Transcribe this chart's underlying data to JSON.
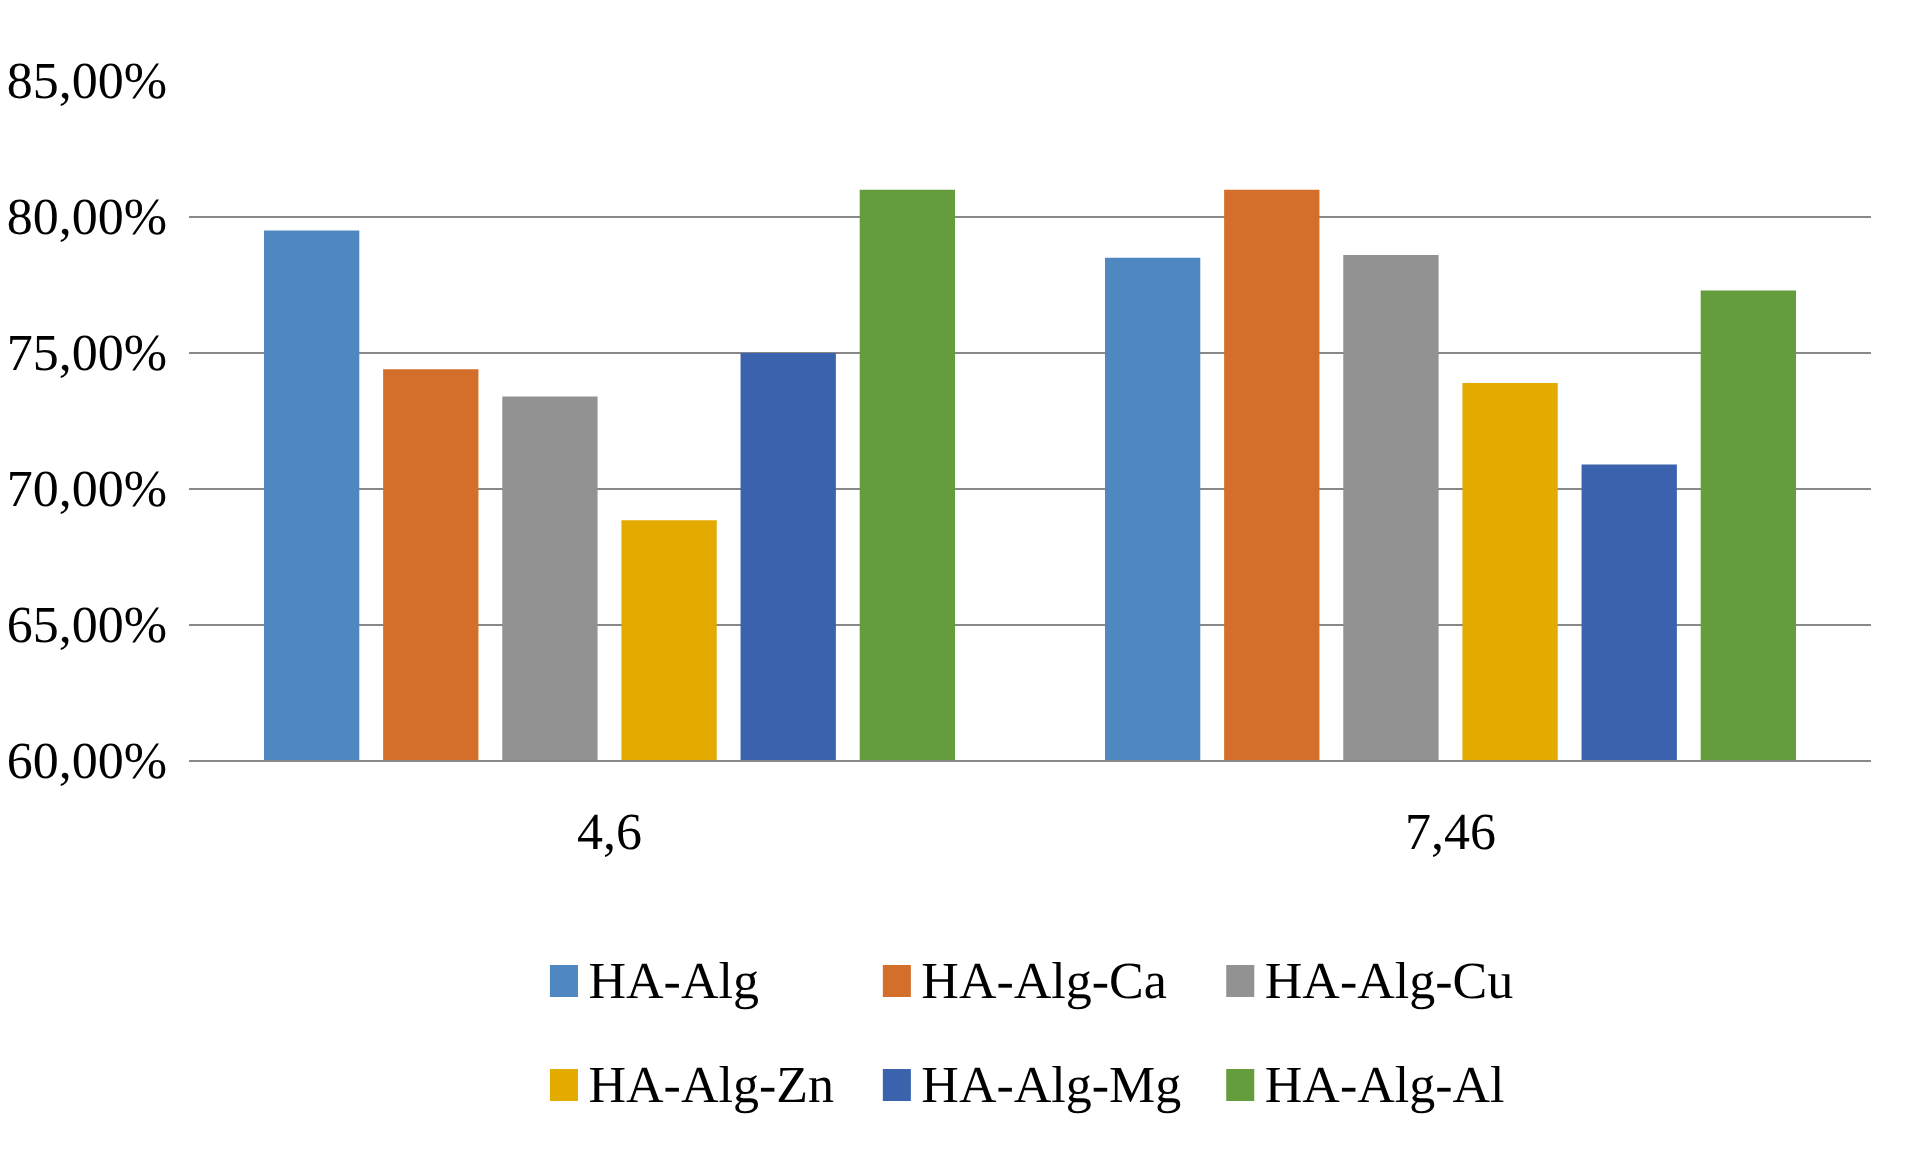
{
  "chart_data": {
    "type": "bar",
    "categories": [
      "4,6",
      "7,46"
    ],
    "series": [
      {
        "name": "HA-Alg",
        "color": "#4f88c0",
        "values": [
          79.5,
          78.5
        ]
      },
      {
        "name": "HA-Alg-Ca",
        "color": "#d36f2a",
        "values": [
          74.4,
          81.0
        ]
      },
      {
        "name": "HA-Alg-Cu",
        "color": "#929292",
        "values": [
          73.4,
          78.6
        ]
      },
      {
        "name": "HA-Alg-Zn",
        "color": "#e3aa00",
        "values": [
          68.85,
          73.9
        ]
      },
      {
        "name": "HA-Alg-Mg",
        "color": "#3a62ad",
        "values": [
          75.0,
          70.9
        ]
      },
      {
        "name": "HA-Alg-Al",
        "color": "#659c3c",
        "values": [
          81.0,
          77.3
        ]
      }
    ],
    "ylim": [
      60,
      85
    ],
    "yticks": [
      {
        "value": 60,
        "label": "60,00%"
      },
      {
        "value": 65,
        "label": "65,00%"
      },
      {
        "value": 70,
        "label": "70,00%"
      },
      {
        "value": 75,
        "label": "75,00%"
      },
      {
        "value": 80,
        "label": "80,00%"
      },
      {
        "value": 85,
        "label": "85,00%"
      }
    ],
    "grid": "y",
    "legend": "bottom"
  }
}
